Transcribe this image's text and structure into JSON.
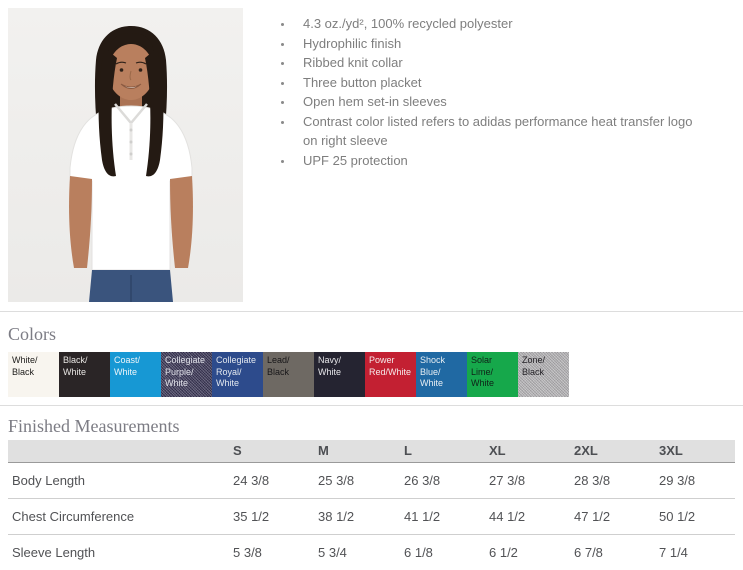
{
  "features": {
    "items": [
      "4.3 oz./yd², 100% recycled polyester",
      "Hydrophilic finish",
      "Ribbed knit collar",
      "Three button placket",
      "Open hem set-in sleeves",
      "Contrast color listed refers to adidas performance heat transfer logo on right sleeve",
      "UPF 25 protection"
    ]
  },
  "colors_section": {
    "heading": "Colors",
    "swatches": [
      {
        "name": "white-black",
        "label": "White/\nBlack",
        "bg": "#f8f5ef",
        "fg": "#1d1c1a",
        "texture": false
      },
      {
        "name": "black-white",
        "label": "Black/\nWhite",
        "bg": "#2a2526",
        "fg": "#e8e6e3",
        "texture": false
      },
      {
        "name": "coast-white",
        "label": "Coast/\nWhite",
        "bg": "#1798d4",
        "fg": "#eef5f9",
        "texture": false
      },
      {
        "name": "collegiate-purple-white",
        "label": "Collegiate\nPurple/\nWhite",
        "bg": "#343051",
        "fg": "#dfe0e8",
        "texture": true
      },
      {
        "name": "collegiate-royal-white",
        "label": "Collegiate\nRoyal/\nWhite",
        "bg": "#2d4b8c",
        "fg": "#e3e8ef",
        "texture": false
      },
      {
        "name": "lead-black",
        "label": "Lead/\nBlack",
        "bg": "#6e6963",
        "fg": "#181719",
        "texture": false
      },
      {
        "name": "navy-white",
        "label": "Navy/\nWhite",
        "bg": "#252431",
        "fg": "#e6e6e9",
        "texture": false
      },
      {
        "name": "power-red-white",
        "label": "Power\nRed/White",
        "bg": "#c32032",
        "fg": "#f4eaea",
        "texture": false
      },
      {
        "name": "shock-blue-white",
        "label": "Shock\nBlue/\nWhite",
        "bg": "#2069a3",
        "fg": "#e7eef3",
        "texture": false
      },
      {
        "name": "solar-lime-white",
        "label": "Solar\nLime/\nWhite",
        "bg": "#16a84b",
        "fg": "#0f2218",
        "texture": false
      },
      {
        "name": "zone-black",
        "label": "Zone/\nBlack",
        "bg": "#b6b4b7",
        "fg": "#232126",
        "texture": true
      }
    ]
  },
  "measurements": {
    "heading": "Finished Measurements",
    "columns": [
      "S",
      "M",
      "L",
      "XL",
      "2XL",
      "3XL"
    ],
    "rows": [
      {
        "label": "Body Length",
        "values": [
          "24 3/8",
          "25 3/8",
          "26 3/8",
          "27 3/8",
          "28 3/8",
          "29 3/8"
        ]
      },
      {
        "label": "Chest Circumference",
        "values": [
          "35 1/2",
          "38 1/2",
          "41 1/2",
          "44 1/2",
          "47 1/2",
          "50 1/2"
        ]
      },
      {
        "label": "Sleeve Length",
        "values": [
          "5 3/8",
          "5 3/4",
          "6 1/8",
          "6 1/2",
          "6 7/8",
          "7 1/4"
        ]
      }
    ]
  }
}
